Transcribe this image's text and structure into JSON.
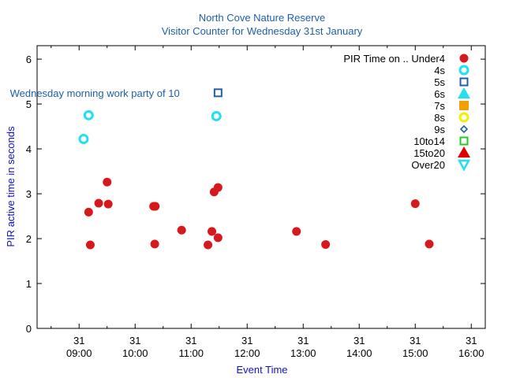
{
  "chart_data": {
    "type": "scatter",
    "title": "North Cove Nature Reserve",
    "subtitle": "Visitor Counter for Wednesday 31st January",
    "xlabel": "Event Time",
    "ylabel": "PIR active time in seconds",
    "xlim": [
      8.25,
      16.25
    ],
    "ylim": [
      0,
      6.3
    ],
    "x_ticks": [
      {
        "value": 9,
        "day": "31",
        "time": "09:00"
      },
      {
        "value": 10,
        "day": "31",
        "time": "10:00"
      },
      {
        "value": 11,
        "day": "31",
        "time": "11:00"
      },
      {
        "value": 12,
        "day": "31",
        "time": "12:00"
      },
      {
        "value": 13,
        "day": "31",
        "time": "13:00"
      },
      {
        "value": 14,
        "day": "31",
        "time": "14:00"
      },
      {
        "value": 15,
        "day": "31",
        "time": "15:00"
      },
      {
        "value": 16,
        "day": "31",
        "time": "16:00"
      }
    ],
    "y_ticks": [
      0,
      1,
      2,
      3,
      4,
      5,
      6
    ],
    "legend_title": "PIR Time on ..",
    "legend_position": "top-right",
    "series": [
      {
        "name": "Under4",
        "marker": "filled-circle",
        "color": "#d7191c",
        "points": [
          {
            "x": 9.17,
            "y": 2.59
          },
          {
            "x": 9.2,
            "y": 1.86
          },
          {
            "x": 9.35,
            "y": 2.79
          },
          {
            "x": 9.5,
            "y": 3.26
          },
          {
            "x": 9.52,
            "y": 2.77
          },
          {
            "x": 10.33,
            "y": 2.72
          },
          {
            "x": 10.36,
            "y": 2.72
          },
          {
            "x": 10.35,
            "y": 1.88
          },
          {
            "x": 10.83,
            "y": 2.19
          },
          {
            "x": 11.3,
            "y": 1.86
          },
          {
            "x": 11.37,
            "y": 2.16
          },
          {
            "x": 11.41,
            "y": 3.04
          },
          {
            "x": 11.48,
            "y": 3.14
          },
          {
            "x": 11.48,
            "y": 2.02
          },
          {
            "x": 12.88,
            "y": 2.16
          },
          {
            "x": 13.4,
            "y": 1.87
          },
          {
            "x": 15.0,
            "y": 2.78
          },
          {
            "x": 15.25,
            "y": 1.88
          }
        ]
      },
      {
        "name": "4s",
        "marker": "open-circle",
        "color": "#22e0f0",
        "points": [
          {
            "x": 9.08,
            "y": 4.22
          },
          {
            "x": 9.17,
            "y": 4.75
          },
          {
            "x": 11.45,
            "y": 4.73
          }
        ]
      },
      {
        "name": "5s",
        "marker": "open-square",
        "color": "#1f5fa8",
        "points": [
          {
            "x": 11.48,
            "y": 5.25
          }
        ]
      },
      {
        "name": "6s",
        "marker": "filled-triangle-up",
        "color": "#22e0f0",
        "points": []
      },
      {
        "name": "7s",
        "marker": "filled-square",
        "color": "#f0a000",
        "points": []
      },
      {
        "name": "8s",
        "marker": "open-circle",
        "color": "#f0f000",
        "points": []
      },
      {
        "name": "9s",
        "marker": "open-diamond",
        "color": "#1f5fa8",
        "points": []
      },
      {
        "name": "10to14",
        "marker": "open-square",
        "color": "#22cc22",
        "points": []
      },
      {
        "name": "15to20",
        "marker": "filled-triangle-up",
        "color": "#e00000",
        "points": []
      },
      {
        "name": "Over20",
        "marker": "open-triangle-down",
        "color": "#22e0f0",
        "points": []
      }
    ],
    "annotations": [
      {
        "text": "Wednesday morning work party of 10",
        "x": 9.95,
        "y": 5.25
      }
    ]
  }
}
